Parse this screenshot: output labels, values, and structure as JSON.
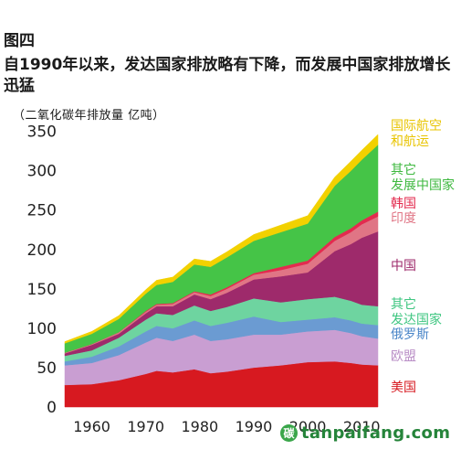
{
  "figure_label": "图四",
  "chart_data": {
    "type": "area",
    "stacked": true,
    "title": "自1990年以来，发达国家排放略有下降，而发展中国家排放增长迅猛",
    "ylabel": "（二氧化碳年排放量 亿吨）",
    "xlabel": "",
    "xlim": [
      1955,
      2013
    ],
    "ylim": [
      0,
      360
    ],
    "x_ticks": [
      "1960",
      "1970",
      "1980",
      "1990",
      "2000",
      "2010"
    ],
    "y_ticks": [
      "0",
      "50",
      "100",
      "150",
      "200",
      "250",
      "300",
      "350"
    ],
    "grid": false,
    "legend": "right, labels beside each band",
    "x": [
      1955,
      1960,
      1965,
      1970,
      1972,
      1975,
      1979,
      1982,
      1985,
      1990,
      1995,
      2000,
      2005,
      2008,
      2010,
      2013
    ],
    "series": [
      {
        "name": "美国",
        "color": "#d71920",
        "values": [
          28,
          29,
          34,
          42,
          46,
          44,
          48,
          43,
          45,
          50,
          53,
          57,
          58,
          56,
          54,
          53
        ]
      },
      {
        "name": "欧盟",
        "color": "#c99ed2",
        "values": [
          25,
          27,
          32,
          40,
          42,
          40,
          44,
          41,
          41,
          42,
          39,
          39,
          40,
          38,
          36,
          34
        ]
      },
      {
        "name": "俄罗斯",
        "color": "#6b9bd2",
        "values": [
          5,
          8,
          11,
          14,
          15,
          16,
          18,
          19,
          21,
          23,
          16,
          15,
          16,
          16,
          16,
          17
        ]
      },
      {
        "name": "其它发达国家",
        "color": "#6ed4a0",
        "values": [
          7,
          8,
          11,
          15,
          16,
          17,
          19,
          19,
          20,
          23,
          25,
          26,
          26,
          25,
          24,
          24
        ]
      },
      {
        "name": "中国",
        "color": "#9e2a6b",
        "values": [
          3,
          7,
          5,
          8,
          9,
          11,
          14,
          15,
          18,
          24,
          33,
          34,
          58,
          72,
          85,
          95
        ]
      },
      {
        "name": "印度",
        "color": "#e07585",
        "values": [
          1,
          1,
          2,
          2,
          2,
          3,
          3,
          4,
          5,
          6,
          8,
          11,
          13,
          15,
          17,
          19
        ]
      },
      {
        "name": "韩国",
        "color": "#e32b4f",
        "values": [
          0,
          0,
          0,
          1,
          1,
          1,
          1,
          2,
          2,
          2,
          4,
          4,
          5,
          5,
          5,
          6
        ]
      },
      {
        "name": "其它发展中国家",
        "color": "#45c447",
        "values": [
          12,
          13,
          17,
          22,
          24,
          27,
          34,
          35,
          38,
          41,
          44,
          47,
          65,
          73,
          77,
          85
        ]
      },
      {
        "name": "国际航空和航运",
        "color": "#f2d100",
        "values": [
          2,
          3,
          4,
          5,
          6,
          6,
          7,
          7,
          7,
          8,
          9,
          10,
          11,
          12,
          12,
          13
        ]
      }
    ]
  },
  "legend_labels": [
    {
      "lines": [
        "国际航空",
        "和航运"
      ],
      "color": "#e8c400"
    },
    {
      "lines": [
        "其它",
        "发展中国家"
      ],
      "color": "#3eb83f"
    },
    {
      "lines": [
        "韩国"
      ],
      "color": "#e32b4f"
    },
    {
      "lines": [
        "印度"
      ],
      "color": "#e07585"
    },
    {
      "lines": [
        "中国"
      ],
      "color": "#9e2a6b"
    },
    {
      "lines": [
        "其它",
        "发达国家"
      ],
      "color": "#3ec680"
    },
    {
      "lines": [
        "俄罗斯"
      ],
      "color": "#4a86c8"
    },
    {
      "lines": [
        "欧盟"
      ],
      "color": "#b98ec6"
    },
    {
      "lines": [
        "美国"
      ],
      "color": "#d71920"
    }
  ],
  "watermark": {
    "text": "tanpaifang.com",
    "badge": "碳"
  }
}
